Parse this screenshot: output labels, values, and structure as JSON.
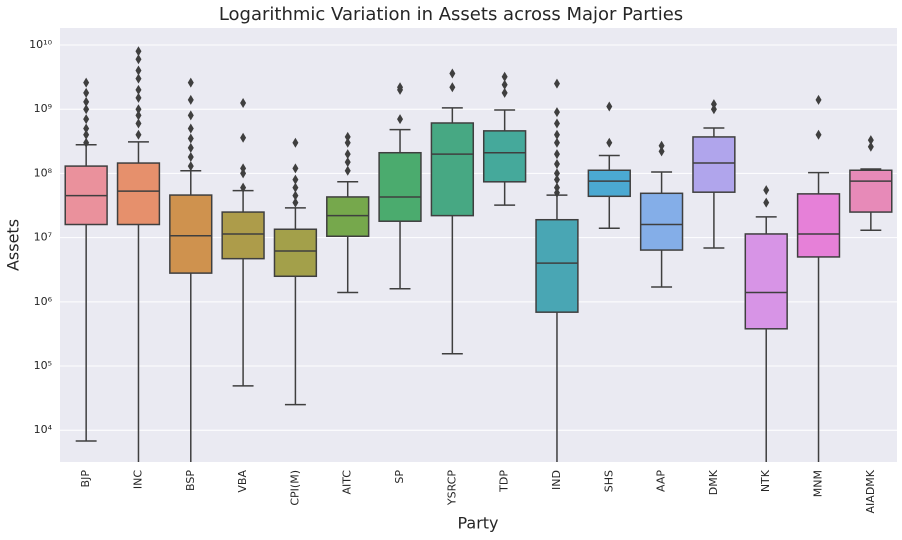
{
  "chart_data": {
    "type": "box",
    "title": "Logarithmic Variation in Assets across Major Parties",
    "x_label": "Party",
    "y_label": "Assets",
    "log_scale": true,
    "grid": true,
    "categories": [
      "BJP",
      "INC",
      "BSP",
      "VBA",
      "CPI(M)",
      "AITC",
      "SP",
      "YSRCP",
      "TDP",
      "IND",
      "SHS",
      "AAP",
      "DMK",
      "NTK",
      "MNM",
      "AIADMK"
    ],
    "colors": [
      "#ea919c",
      "#e6906c",
      "#cf924e",
      "#ad9c4a",
      "#a3a04a",
      "#76a84c",
      "#4bab6e",
      "#47a883",
      "#45a99b",
      "#49a6b4",
      "#4ba9d2",
      "#84aee8",
      "#b0a5ec",
      "#d794e6",
      "#e680d8",
      "#e78ab8"
    ],
    "whislo": [
      6800,
      1000,
      1000,
      49000,
      25000,
      1400000,
      1600000,
      155000,
      32000000,
      1000,
      14000000,
      1700000,
      6900000,
      1000,
      1000,
      13000000
    ],
    "q1": [
      16000000,
      16000000,
      2800000,
      4700000,
      2500000,
      10500000,
      18000000,
      22000000,
      74000000,
      690000,
      44000000,
      6400000,
      51000000,
      380000,
      5000000,
      25000000
    ],
    "median": [
      45000000,
      53000000,
      10700000,
      11400000,
      6200000,
      22000000,
      43000000,
      200000000,
      210000000,
      4000000,
      76000000,
      16000000,
      145000000,
      1400000,
      11400000,
      76000000
    ],
    "q3": [
      130000000,
      145000000,
      46000000,
      25000000,
      13500000,
      43000000,
      210000000,
      610000000,
      460000000,
      19000000,
      112000000,
      49000000,
      370000000,
      11400000,
      48000000,
      112000000
    ],
    "whishi": [
      280000000,
      310000000,
      110000000,
      54000000,
      29000000,
      74000000,
      480000000,
      1050000000,
      970000000,
      46000000,
      190000000,
      105000000,
      510000000,
      21000000,
      103000000,
      117000000
    ],
    "fliers": [
      [
        300000000,
        400000000,
        500000000,
        700000000,
        1000000000,
        1300000000,
        1800000000,
        2600000000
      ],
      [
        400000000,
        600000000,
        800000000,
        1000000000,
        1500000000,
        2000000000,
        3000000000,
        4000000000,
        6000000000,
        8000000000
      ],
      [
        130000000,
        180000000,
        250000000,
        350000000,
        500000000,
        800000000,
        1400000000,
        2600000000
      ],
      [
        60000000,
        100000000,
        120000000,
        360000000,
        1250000000
      ],
      [
        35000000,
        45000000,
        60000000,
        80000000,
        120000000,
        300000000
      ],
      [
        110000000,
        150000000,
        200000000,
        300000000,
        370000000
      ],
      [
        700000000,
        2000000000,
        2200000000
      ],
      [
        2200000000,
        3600000000
      ],
      [
        1800000000,
        2400000000,
        3200000000
      ],
      [
        50000000,
        60000000,
        80000000,
        100000000,
        140000000,
        200000000,
        300000000,
        400000000,
        600000000,
        900000000,
        2500000000
      ],
      [
        300000000,
        1100000000
      ],
      [
        220000000,
        270000000
      ],
      [
        1000000000,
        1200000000
      ],
      [
        35000000,
        55000000
      ],
      [
        400000000,
        1400000000
      ],
      [
        260000000,
        330000000
      ]
    ],
    "ylim": [
      3200,
      18400000000
    ],
    "yticks": [
      {
        "value": 10000,
        "label": "10⁴"
      },
      {
        "value": 100000,
        "label": "10⁵"
      },
      {
        "value": 1000000,
        "label": "10⁶"
      },
      {
        "value": 10000000,
        "label": "10⁷"
      },
      {
        "value": 100000000,
        "label": "10⁸"
      },
      {
        "value": 1000000000,
        "label": "10⁹"
      },
      {
        "value": 10000000000,
        "label": "10¹⁰"
      }
    ]
  }
}
